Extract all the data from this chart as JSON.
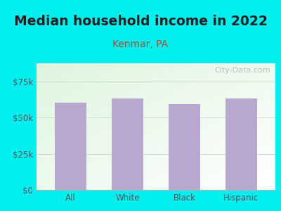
{
  "title": "Median household income in 2022",
  "subtitle": "Kenmar, PA",
  "categories": [
    "All",
    "White",
    "Black",
    "Hispanic"
  ],
  "values": [
    60500,
    63000,
    59500,
    63000
  ],
  "bar_color": "#b8a8d0",
  "title_fontsize": 13.5,
  "subtitle_fontsize": 10,
  "subtitle_color": "#a0522d",
  "title_color": "#222222",
  "tick_label_color": "#555555",
  "background_color": "#00f0f0",
  "plot_bg_color_topleft": "#ddf0dd",
  "plot_bg_color_bottomright": "#f8fff8",
  "ylim": [
    0,
    87500
  ],
  "yticks": [
    0,
    25000,
    50000,
    75000
  ],
  "ytick_labels": [
    "$0",
    "$25k",
    "$50k",
    "$75k"
  ],
  "watermark": "City-Data.com",
  "watermark_color": "#b0b8c0",
  "grid_color": "#d0d8d0",
  "bottom_spine_color": "#b0b0b0"
}
